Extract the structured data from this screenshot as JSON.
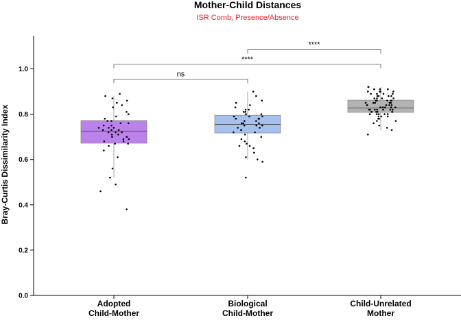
{
  "chart_data": {
    "type": "box",
    "title": "Mother-Child Distances",
    "subtitle": "ISR Comb, Presence/Absence",
    "subtitle_color": "#e8212a",
    "ylabel": "Bray-Curtis Dissimilarity Index",
    "xlabel": "",
    "ylim": [
      0,
      1.15
    ],
    "yticks": [
      "0.0",
      "0.2",
      "0.4",
      "0.6",
      "0.8",
      "1.0"
    ],
    "grid": false,
    "categories": [
      {
        "line1": "Adopted",
        "line2": "Child-Mother"
      },
      {
        "line1": "Biological",
        "line2": "Child-Mother"
      },
      {
        "line1": "Child-Unrelated",
        "line2": "Mother"
      }
    ],
    "boxes": [
      {
        "name": "Adopted Child-Mother",
        "color": "#bb82ec",
        "q1": 0.672,
        "median": 0.725,
        "q3": 0.772,
        "whisker_low": 0.52,
        "whisker_high": 0.88,
        "points": [
          0.38,
          0.46,
          0.49,
          0.52,
          0.56,
          0.61,
          0.64,
          0.66,
          0.67,
          0.67,
          0.68,
          0.68,
          0.69,
          0.69,
          0.7,
          0.7,
          0.71,
          0.71,
          0.72,
          0.72,
          0.72,
          0.73,
          0.73,
          0.73,
          0.74,
          0.74,
          0.74,
          0.75,
          0.75,
          0.76,
          0.76,
          0.77,
          0.77,
          0.78,
          0.79,
          0.8,
          0.81,
          0.83,
          0.84,
          0.85,
          0.86,
          0.87,
          0.88,
          0.89
        ]
      },
      {
        "name": "Biological Child-Mother",
        "color": "#a6c0ef",
        "q1": 0.717,
        "median": 0.755,
        "q3": 0.795,
        "whisker_low": 0.6,
        "whisker_high": 0.9,
        "points": [
          0.52,
          0.59,
          0.6,
          0.61,
          0.63,
          0.65,
          0.66,
          0.66,
          0.67,
          0.68,
          0.69,
          0.7,
          0.71,
          0.72,
          0.72,
          0.73,
          0.73,
          0.74,
          0.74,
          0.75,
          0.75,
          0.75,
          0.76,
          0.76,
          0.76,
          0.77,
          0.77,
          0.78,
          0.78,
          0.78,
          0.79,
          0.79,
          0.79,
          0.8,
          0.8,
          0.81,
          0.81,
          0.82,
          0.82,
          0.83,
          0.84,
          0.85,
          0.86,
          0.88,
          0.9
        ]
      },
      {
        "name": "Child-Unrelated Mother",
        "color": "#b3b3b3",
        "q1": 0.808,
        "median": 0.827,
        "q3": 0.862,
        "whisker_low": 0.73,
        "whisker_high": 0.92,
        "points": [
          0.71,
          0.73,
          0.74,
          0.75,
          0.76,
          0.77,
          0.77,
          0.78,
          0.78,
          0.79,
          0.79,
          0.79,
          0.8,
          0.8,
          0.8,
          0.8,
          0.8,
          0.81,
          0.81,
          0.81,
          0.81,
          0.81,
          0.81,
          0.82,
          0.82,
          0.82,
          0.82,
          0.82,
          0.82,
          0.82,
          0.83,
          0.83,
          0.83,
          0.83,
          0.83,
          0.83,
          0.84,
          0.84,
          0.84,
          0.84,
          0.84,
          0.85,
          0.85,
          0.85,
          0.85,
          0.85,
          0.86,
          0.86,
          0.86,
          0.86,
          0.86,
          0.87,
          0.87,
          0.87,
          0.87,
          0.88,
          0.88,
          0.88,
          0.88,
          0.89,
          0.89,
          0.89,
          0.89,
          0.9,
          0.9,
          0.9,
          0.9,
          0.91,
          0.91,
          0.91,
          0.92,
          0.92
        ]
      }
    ],
    "comparisons": [
      {
        "from": 0,
        "to": 1,
        "y": 0.955,
        "label": "ns"
      },
      {
        "from": 0,
        "to": 2,
        "y": 1.02,
        "label": "****"
      },
      {
        "from": 1,
        "to": 2,
        "y": 1.085,
        "label": "****"
      }
    ]
  }
}
